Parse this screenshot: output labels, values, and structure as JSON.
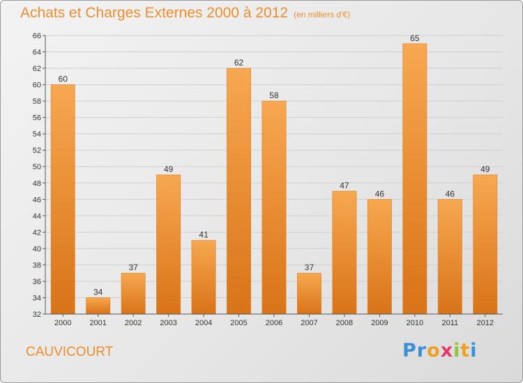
{
  "header": {
    "title": "Achats et Charges Externes 2000 à 2012",
    "subtitle": "(en milliers d'€)"
  },
  "footer": {
    "place": "CAUVICOURT",
    "logo_letters": [
      "P",
      "r",
      "o",
      "x",
      "i",
      "t",
      "i"
    ],
    "logo_colors": [
      "#3b8ed8",
      "#3b8ed8",
      "#f0a020",
      "#e23a6a",
      "#8cc63f",
      "#f0a020",
      "#3b8ed8"
    ]
  },
  "colors": {
    "bar_light": "#f7a850",
    "bar_dark": "#d97318",
    "accent": "#ee8d2c"
  },
  "chart_data": {
    "type": "bar",
    "title": "Achats et Charges Externes 2000 à 2012",
    "subtitle": "(en milliers d'€)",
    "categories": [
      "2000",
      "2001",
      "2002",
      "2003",
      "2004",
      "2005",
      "2006",
      "2007",
      "2008",
      "2009",
      "2010",
      "2011",
      "2012"
    ],
    "values": [
      60,
      34,
      37,
      49,
      41,
      62,
      58,
      37,
      47,
      46,
      65,
      46,
      49
    ],
    "ylim": [
      32,
      66
    ],
    "ytick_step": 2,
    "grid": true,
    "legend": "none"
  }
}
